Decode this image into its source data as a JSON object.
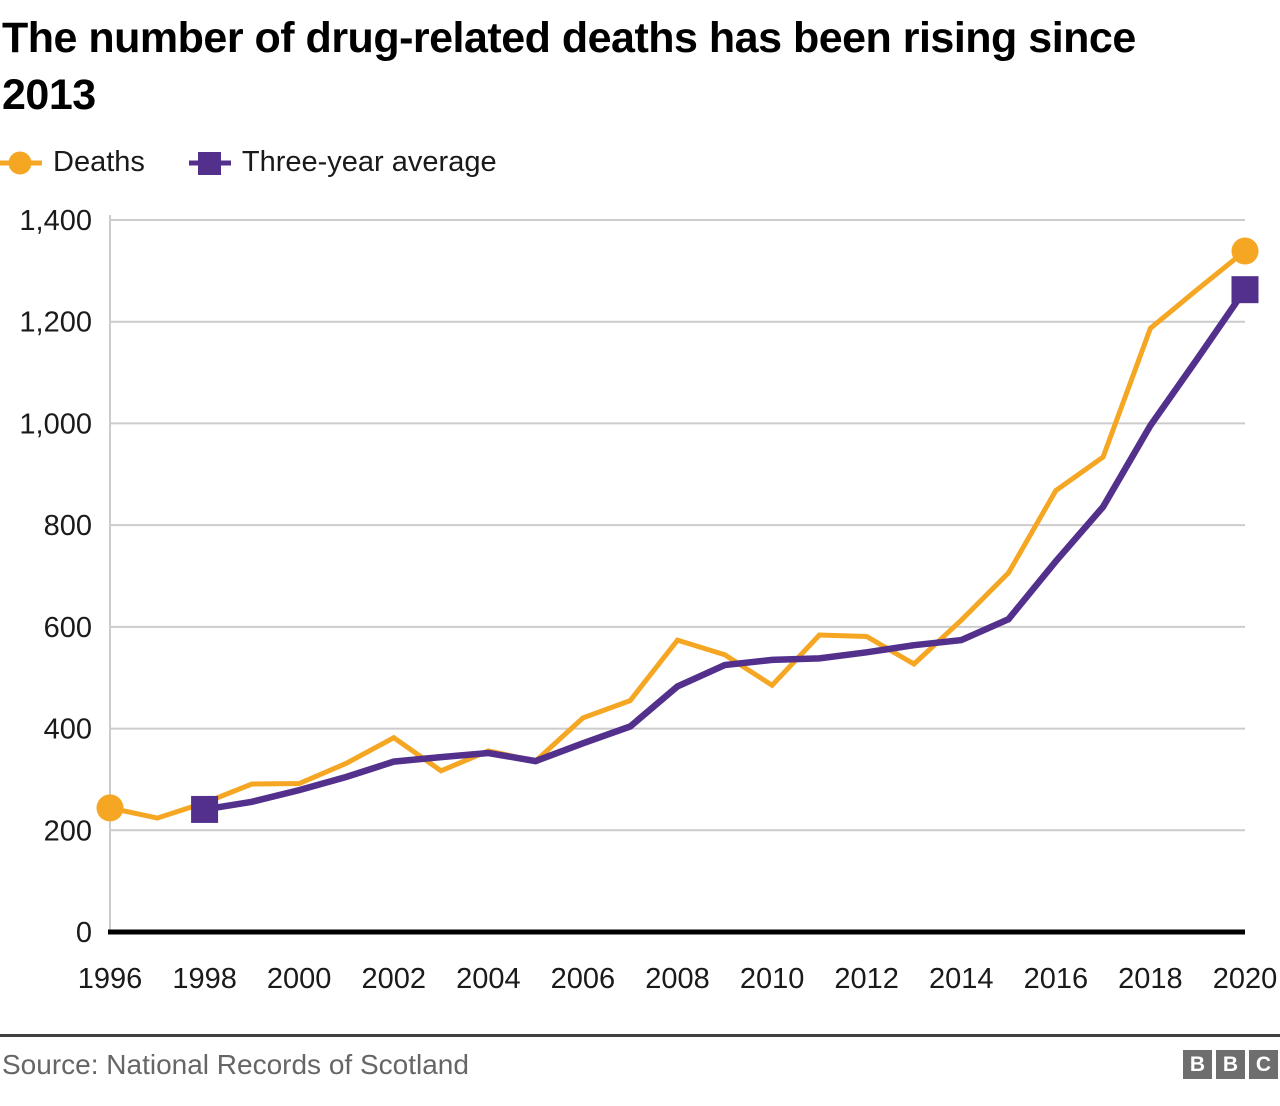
{
  "title": "The number of drug-related deaths has been rising since 2013",
  "legend": [
    {
      "label": "Deaths",
      "marker": "circle"
    },
    {
      "label": "Three-year average",
      "marker": "square"
    }
  ],
  "colors": {
    "deaths": "#F5A623",
    "avg": "#52308C",
    "grid": "#CCCCCC",
    "axis": "#000000",
    "tick_text": "#1A1A1A",
    "divider": "#404040",
    "source_text": "#666666",
    "bbc_block": "#6E6E6E"
  },
  "footer": {
    "source": "Source: National Records of Scotland",
    "logo_letters": [
      "B",
      "B",
      "C"
    ]
  },
  "chart_data": {
    "type": "line",
    "title": "The number of drug-related deaths has been rising since 2013",
    "xlabel": "",
    "ylabel": "",
    "xlim": [
      1996,
      2020
    ],
    "ylim": [
      0,
      1400
    ],
    "x_ticks": [
      1996,
      1998,
      2000,
      2002,
      2004,
      2006,
      2008,
      2010,
      2012,
      2014,
      2016,
      2018,
      2020
    ],
    "y_ticks": [
      0,
      200,
      400,
      600,
      800,
      1000,
      1200,
      1400
    ],
    "grid": true,
    "legend_position": "top-left",
    "series": [
      {
        "name": "Deaths",
        "color": "#F5A623",
        "marker": "circle",
        "x": [
          1996,
          1997,
          1998,
          1999,
          2000,
          2001,
          2002,
          2003,
          2004,
          2005,
          2006,
          2007,
          2008,
          2009,
          2010,
          2011,
          2012,
          2013,
          2014,
          2015,
          2016,
          2017,
          2018,
          2019,
          2020
        ],
        "values": [
          244,
          224,
          254,
          291,
          292,
          332,
          382,
          317,
          356,
          336,
          421,
          455,
          574,
          545,
          485,
          584,
          581,
          527,
          613,
          706,
          868,
          934,
          1187,
          1264,
          1339
        ]
      },
      {
        "name": "Three-year average",
        "color": "#52308C",
        "marker": "square",
        "x": [
          1998,
          1999,
          2000,
          2001,
          2002,
          2003,
          2004,
          2005,
          2006,
          2007,
          2008,
          2009,
          2010,
          2011,
          2012,
          2013,
          2014,
          2015,
          2016,
          2017,
          2018,
          2019,
          2020
        ],
        "values": [
          241,
          256,
          279,
          305,
          335,
          344,
          352,
          336,
          371,
          404,
          483,
          525,
          535,
          538,
          550,
          564,
          574,
          615,
          729,
          836,
          996,
          1128,
          1263
        ]
      }
    ]
  }
}
